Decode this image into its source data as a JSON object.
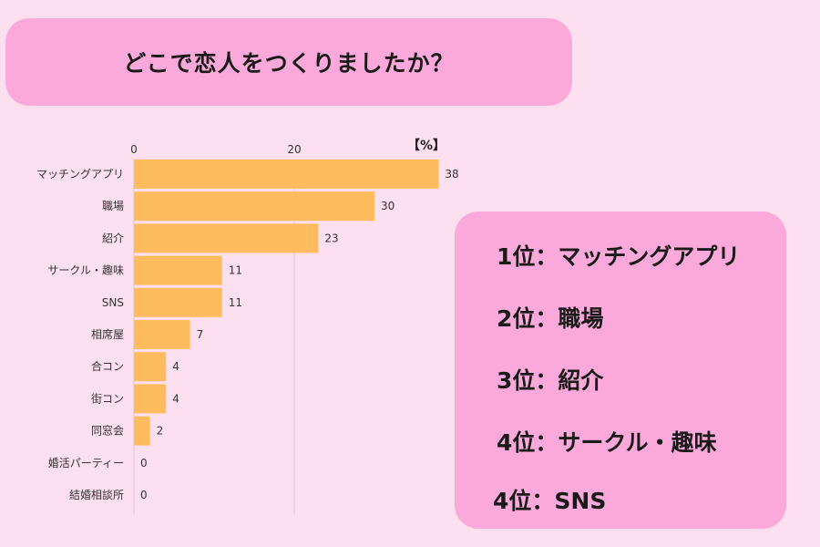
{
  "title": "どこで恋人をつくりましたか？",
  "chart_data": {
    "type": "bar",
    "orientation": "horizontal",
    "unit_label": "【%】",
    "categories": [
      "マッチングアプリ",
      "職場",
      "紹介",
      "サークル・趣味",
      "SNS",
      "相席屋",
      "合コン",
      "街コン",
      "同窓会",
      "婚活パーティー",
      "結婚相談所"
    ],
    "values": [
      38,
      30,
      23,
      11,
      11,
      7,
      4,
      4,
      2,
      0,
      0
    ],
    "xticks": [
      0,
      20
    ],
    "xlim": [
      0,
      40
    ],
    "grid": true,
    "bar_color": "#ffbc5e"
  },
  "ranking": [
    "1位：マッチングアプリ",
    "2位：職場",
    "3位：紹介",
    "4位：サークル・趣味",
    "4位：SNS"
  ],
  "colors": {
    "background": "#fde0ef",
    "panel": "#fba9da",
    "bar": "#ffbc5e"
  }
}
